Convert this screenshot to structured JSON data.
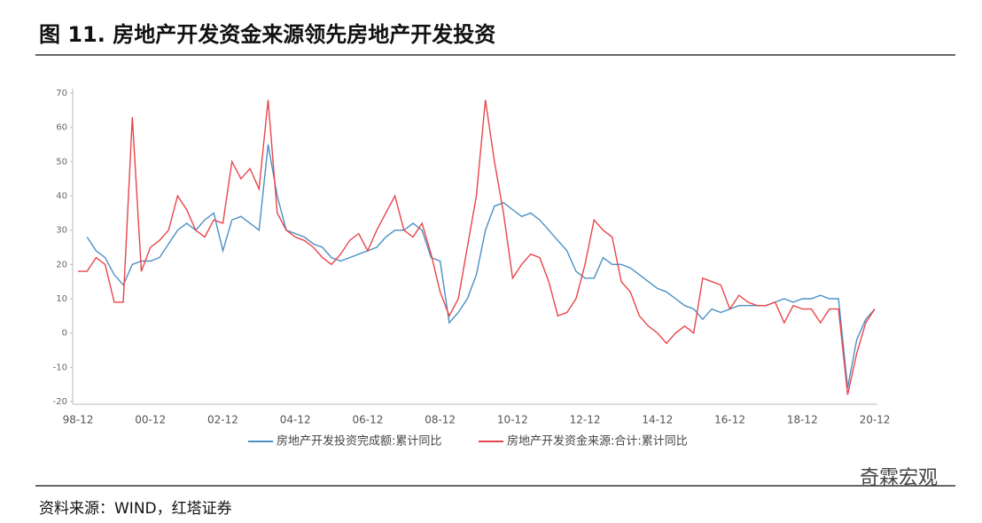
{
  "chart_data": {
    "type": "line",
    "title": "图 11. 房地产开发资金来源领先房地产开发投资",
    "source": "资料来源：WIND，红塔证券",
    "watermark": "奇霖宏观",
    "categories": [
      "98-12",
      null,
      null,
      null,
      null,
      null,
      null,
      null,
      "00-12",
      null,
      null,
      null,
      null,
      null,
      null,
      null,
      "02-12",
      null,
      null,
      null,
      null,
      null,
      null,
      null,
      "04-12",
      null,
      null,
      null,
      null,
      null,
      null,
      null,
      "06-12",
      null,
      null,
      null,
      null,
      null,
      null,
      null,
      "08-12",
      null,
      null,
      null,
      null,
      null,
      null,
      null,
      "10-12",
      null,
      null,
      null,
      null,
      null,
      null,
      null,
      "12-12",
      null,
      null,
      null,
      null,
      null,
      null,
      null,
      "14-12",
      null,
      null,
      null,
      null,
      null,
      null,
      null,
      "16-12",
      null,
      null,
      null,
      null,
      null,
      null,
      null,
      "18-12",
      null,
      null,
      null,
      null,
      null,
      null,
      null,
      "20-12"
    ],
    "series": [
      {
        "name": "房地产开发投资完成额:累计同比",
        "color": "#4a90c4",
        "values": [
          null,
          28,
          24,
          22,
          17,
          14,
          20,
          21,
          21,
          22,
          26,
          30,
          32,
          30,
          33,
          35,
          24,
          33,
          34,
          32,
          30,
          55,
          40,
          30,
          29,
          28,
          26,
          25,
          22,
          21,
          22,
          23,
          24,
          25,
          28,
          30,
          30,
          32,
          30,
          22,
          21,
          3,
          6,
          10,
          17,
          30,
          37,
          38,
          36,
          34,
          35,
          33,
          30,
          27,
          24,
          18,
          16,
          16,
          22,
          20,
          20,
          19,
          17,
          15,
          13,
          12,
          10,
          8,
          7,
          4,
          7,
          6,
          7,
          8,
          8,
          8,
          8,
          9,
          10,
          9,
          10,
          10,
          11,
          10,
          10,
          -16,
          -2,
          4,
          7
        ]
      },
      {
        "name": "房地产开发资金来源:合计:累计同比",
        "color": "#e8454a",
        "values": [
          18,
          18,
          22,
          20,
          9,
          9,
          63,
          18,
          25,
          27,
          30,
          40,
          36,
          30,
          28,
          33,
          32,
          50,
          45,
          48,
          42,
          68,
          35,
          30,
          28,
          27,
          25,
          22,
          20,
          23,
          27,
          29,
          24,
          30,
          35,
          40,
          30,
          28,
          32,
          23,
          12,
          5,
          10,
          25,
          40,
          68,
          50,
          35,
          16,
          20,
          23,
          22,
          15,
          5,
          6,
          10,
          20,
          33,
          30,
          28,
          15,
          12,
          5,
          2,
          0,
          -3,
          0,
          2,
          0,
          16,
          15,
          14,
          7,
          11,
          9,
          8,
          8,
          9,
          3,
          8,
          7,
          7,
          3,
          7,
          7,
          -18,
          -6,
          3,
          7
        ]
      }
    ],
    "ylim": [
      -20,
      70
    ],
    "yticks": [
      -20,
      -10,
      0,
      10,
      20,
      30,
      40,
      50,
      60,
      70
    ]
  }
}
